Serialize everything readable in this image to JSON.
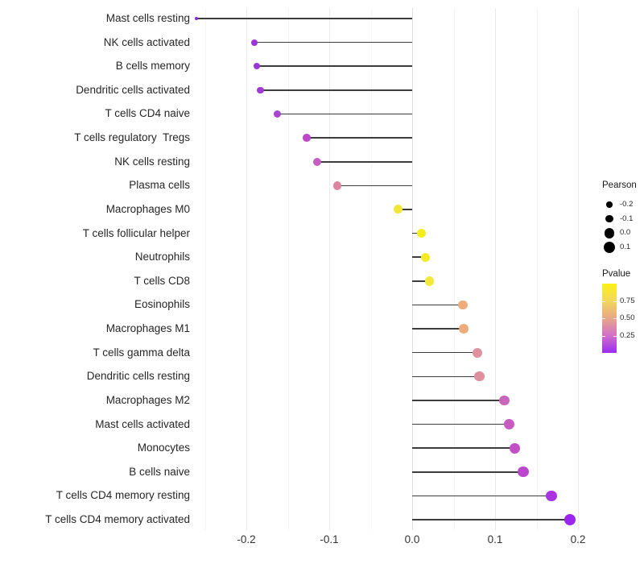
{
  "chart_data": {
    "type": "lollipop",
    "orientation": "horizontal",
    "title": "",
    "xlabel": "",
    "ylabel": "",
    "xlim": [
      -0.2625,
      0.2155
    ],
    "grid": true,
    "legend_position": "right",
    "x_tick_labels": [
      "-0.2",
      "-0.1",
      "0.0",
      "0.1",
      "0.2"
    ],
    "x_ticks": [
      -0.2,
      -0.1,
      0.0,
      0.1,
      0.2
    ],
    "x_minor_ticks": [
      -0.25,
      -0.15,
      -0.05,
      0.05,
      0.15
    ],
    "size_by": "Pearson",
    "color_by": "Pvalue",
    "rows": [
      {
        "label": "Mast cells resting",
        "pearson": -0.26,
        "color": "#8a2be0",
        "radius": 2.2
      },
      {
        "label": "NK cells activated",
        "pearson": -0.19,
        "color": "#9c35d8",
        "radius": 4.1
      },
      {
        "label": "B cells memory",
        "pearson": -0.187,
        "color": "#9c35d8",
        "radius": 4.1
      },
      {
        "label": "Dendritic cells activated",
        "pearson": -0.183,
        "color": "#a13ad6",
        "radius": 4.3
      },
      {
        "label": "T cells CD4 naive",
        "pearson": -0.163,
        "color": "#a844d2",
        "radius": 4.6
      },
      {
        "label": "T cells regulatory  Tregs",
        "pearson": -0.127,
        "color": "#bc48c9",
        "radius": 4.9
      },
      {
        "label": "NK cells resting",
        "pearson": -0.115,
        "color": "#c55ec2",
        "radius": 5.0
      },
      {
        "label": "Plasma cells",
        "pearson": -0.09,
        "color": "#dc85a0",
        "radius": 5.2
      },
      {
        "label": "Macrophages M0",
        "pearson": -0.017,
        "color": "#f2e637",
        "radius": 5.5
      },
      {
        "label": "T cells follicular helper",
        "pearson": 0.011,
        "color": "#f6ee1c",
        "radius": 5.6
      },
      {
        "label": "Neutrophils",
        "pearson": 0.016,
        "color": "#f4eb28",
        "radius": 5.6
      },
      {
        "label": "T cells CD8",
        "pearson": 0.021,
        "color": "#f2e93b",
        "radius": 5.7
      },
      {
        "label": "Eosinophils",
        "pearson": 0.061,
        "color": "#eeac7c",
        "radius": 5.9
      },
      {
        "label": "Macrophages M1",
        "pearson": 0.062,
        "color": "#eeac7c",
        "radius": 5.9
      },
      {
        "label": "T cells gamma delta",
        "pearson": 0.079,
        "color": "#de909d",
        "radius": 6.1
      },
      {
        "label": "Dendritic cells resting",
        "pearson": 0.081,
        "color": "#de909d",
        "radius": 6.1
      },
      {
        "label": "Macrophages M2",
        "pearson": 0.111,
        "color": "#c966b9",
        "radius": 6.3
      },
      {
        "label": "Mast cells activated",
        "pearson": 0.117,
        "color": "#c75cc0",
        "radius": 6.4
      },
      {
        "label": "Monocytes",
        "pearson": 0.124,
        "color": "#c250c5",
        "radius": 6.5
      },
      {
        "label": "B cells naive",
        "pearson": 0.134,
        "color": "#bc47cd",
        "radius": 6.6
      },
      {
        "label": "T cells CD4 memory resting",
        "pearson": 0.168,
        "color": "#aa33e2",
        "radius": 6.9
      },
      {
        "label": "T cells CD4 memory activated",
        "pearson": 0.19,
        "color": "#9b27ee",
        "radius": 7.1
      }
    ]
  },
  "legend": {
    "size": {
      "title": "Pearson",
      "entries": [
        {
          "label": "-0.2",
          "radius": 3.7
        },
        {
          "label": "-0.1",
          "radius": 4.7
        },
        {
          "label": "0.0",
          "radius": 6.2
        },
        {
          "label": "0.1",
          "radius": 7.0
        }
      ],
      "dot_color": "#000000"
    },
    "color": {
      "title": "Pvalue",
      "tick_labels": [
        "0.75",
        "0.50",
        "0.25"
      ],
      "tick_values": [
        0.75,
        0.5,
        0.25
      ],
      "range": [
        0,
        1
      ],
      "gradient_top_to_bottom": [
        "#fbf116",
        "#f2d75f",
        "#e8a788",
        "#d06fc9",
        "#9b2bf2"
      ]
    }
  },
  "colors": {
    "stem": "#3d3d3d",
    "grid_major": "#eaeaea",
    "grid_minor": "#f5f5f5",
    "zero_line": "#dedede"
  }
}
